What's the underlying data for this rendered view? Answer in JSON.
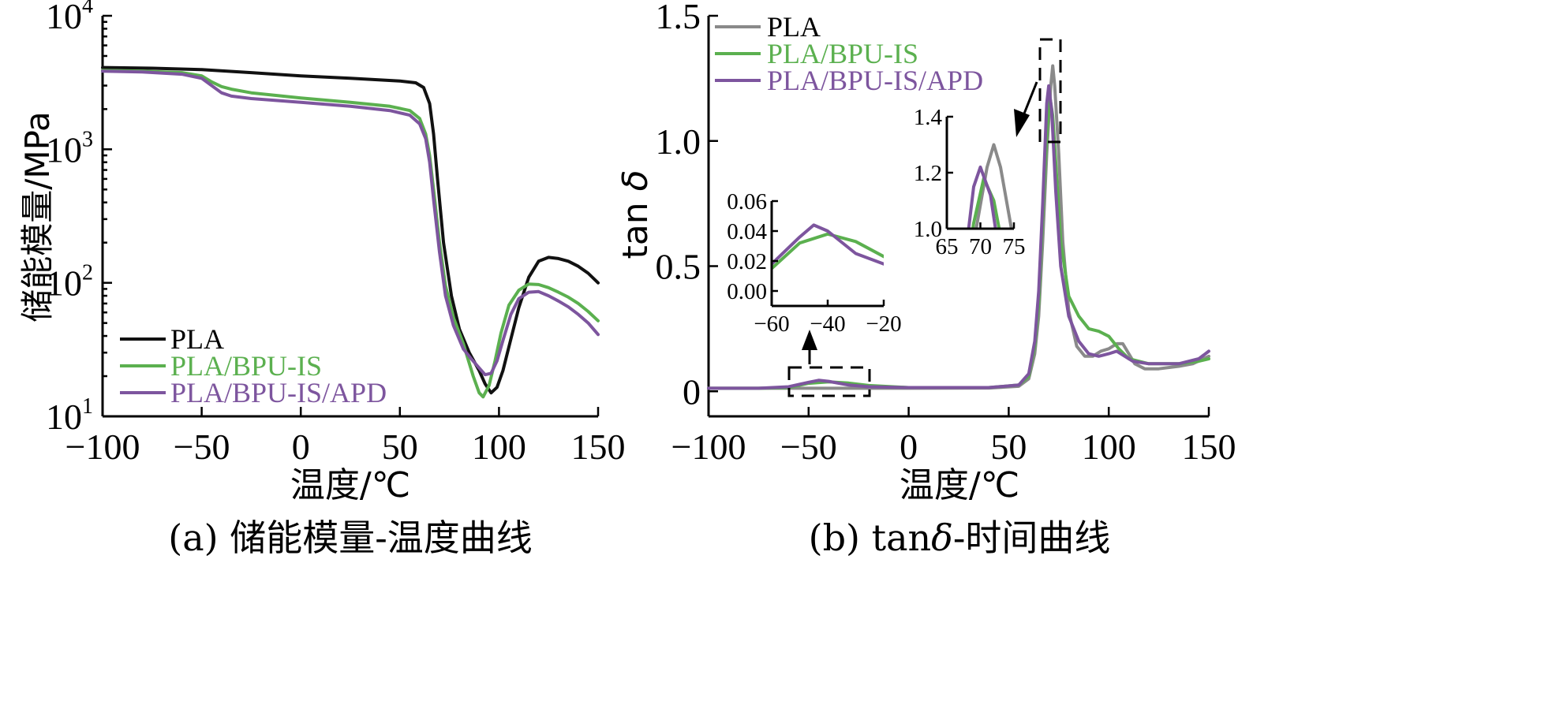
{
  "chart_data": [
    {
      "type": "line",
      "caption": "(a) 储能模量-温度曲线",
      "xlabel": "温度/℃",
      "ylabel": "储能模量/MPa",
      "xlim": [
        -100,
        150
      ],
      "ylim": [
        10,
        10000
      ],
      "yscale": "log",
      "xticks": [
        -100,
        -50,
        0,
        50,
        100,
        150
      ],
      "xtick_labels": [
        "−100",
        "−50",
        "0",
        "50",
        "100",
        "150"
      ],
      "yticks": [
        {
          "value": 10,
          "base": "10",
          "exp": "1"
        },
        {
          "value": 100,
          "base": "10",
          "exp": "2"
        },
        {
          "value": 1000,
          "base": "10",
          "exp": "3"
        },
        {
          "value": 10000,
          "base": "10",
          "exp": "4"
        }
      ],
      "legend_position": "lower-left",
      "series": [
        {
          "name": "PLA",
          "color": "#111111",
          "points": [
            [
              -100,
              4100
            ],
            [
              -75,
              4050
            ],
            [
              -50,
              3950
            ],
            [
              -25,
              3750
            ],
            [
              0,
              3550
            ],
            [
              25,
              3400
            ],
            [
              50,
              3250
            ],
            [
              58,
              3150
            ],
            [
              62,
              2900
            ],
            [
              65,
              2200
            ],
            [
              67,
              1300
            ],
            [
              69,
              600
            ],
            [
              72,
              200
            ],
            [
              76,
              80
            ],
            [
              80,
              45
            ],
            [
              85,
              30
            ],
            [
              90,
              22
            ],
            [
              93,
              17.5
            ],
            [
              96,
              15
            ],
            [
              99,
              16.5
            ],
            [
              102,
              22
            ],
            [
              106,
              38
            ],
            [
              110,
              65
            ],
            [
              115,
              110
            ],
            [
              120,
              145
            ],
            [
              125,
              155
            ],
            [
              130,
              152
            ],
            [
              135,
              145
            ],
            [
              140,
              133
            ],
            [
              145,
              118
            ],
            [
              150,
              100
            ]
          ]
        },
        {
          "name": "PLA/BPU-IS",
          "color": "#5bb04f",
          "points": [
            [
              -100,
              3900
            ],
            [
              -80,
              3850
            ],
            [
              -60,
              3750
            ],
            [
              -50,
              3550
            ],
            [
              -45,
              3200
            ],
            [
              -40,
              2950
            ],
            [
              -35,
              2820
            ],
            [
              -25,
              2650
            ],
            [
              0,
              2420
            ],
            [
              25,
              2250
            ],
            [
              45,
              2100
            ],
            [
              55,
              1950
            ],
            [
              60,
              1700
            ],
            [
              63,
              1300
            ],
            [
              65,
              900
            ],
            [
              67,
              500
            ],
            [
              70,
              200
            ],
            [
              73,
              95
            ],
            [
              77,
              55
            ],
            [
              82,
              35
            ],
            [
              87,
              20
            ],
            [
              90,
              15
            ],
            [
              92,
              14
            ],
            [
              95,
              17
            ],
            [
              98,
              26
            ],
            [
              101,
              42
            ],
            [
              105,
              68
            ],
            [
              110,
              88
            ],
            [
              115,
              98
            ],
            [
              120,
              97
            ],
            [
              125,
              92
            ],
            [
              130,
              85
            ],
            [
              135,
              78
            ],
            [
              140,
              70
            ],
            [
              145,
              61
            ],
            [
              150,
              52
            ]
          ]
        },
        {
          "name": "PLA/BPU-IS/APD",
          "color": "#7d559e",
          "points": [
            [
              -100,
              3850
            ],
            [
              -80,
              3800
            ],
            [
              -60,
              3650
            ],
            [
              -50,
              3400
            ],
            [
              -45,
              3000
            ],
            [
              -40,
              2650
            ],
            [
              -35,
              2500
            ],
            [
              -25,
              2400
            ],
            [
              0,
              2250
            ],
            [
              25,
              2100
            ],
            [
              45,
              1950
            ],
            [
              55,
              1800
            ],
            [
              60,
              1550
            ],
            [
              63,
              1200
            ],
            [
              65,
              800
            ],
            [
              67,
              420
            ],
            [
              70,
              170
            ],
            [
              73,
              80
            ],
            [
              77,
              48
            ],
            [
              82,
              32
            ],
            [
              86,
              27
            ],
            [
              90,
              23
            ],
            [
              93,
              20.5
            ],
            [
              96,
              21
            ],
            [
              99,
              26
            ],
            [
              102,
              37
            ],
            [
              106,
              58
            ],
            [
              110,
              76
            ],
            [
              115,
              85
            ],
            [
              120,
              86
            ],
            [
              125,
              80
            ],
            [
              130,
              73
            ],
            [
              135,
              66
            ],
            [
              140,
              58
            ],
            [
              145,
              50
            ],
            [
              150,
              41
            ]
          ]
        }
      ]
    },
    {
      "type": "line",
      "caption_prefix": "(b) tan",
      "caption_symbol": "δ",
      "caption_suffix": "-时间曲线",
      "xlabel": "温度/℃",
      "ylabel_prefix": "tan ",
      "ylabel_symbol": "δ",
      "xlim": [
        -100,
        150
      ],
      "ylim": [
        -0.1,
        1.5
      ],
      "xticks": [
        -100,
        -50,
        0,
        50,
        100,
        150
      ],
      "xtick_labels": [
        "−100",
        "−50",
        "0",
        "50",
        "100",
        "150"
      ],
      "yticks": [
        0,
        0.5,
        1.0,
        1.5
      ],
      "ytick_labels": [
        "0",
        "0.5",
        "1.0",
        "1.5"
      ],
      "legend_position": "top-left",
      "series": [
        {
          "name": "PLA",
          "color": "#8a8a8a",
          "points": [
            [
              -100,
              0.012
            ],
            [
              -50,
              0.012
            ],
            [
              0,
              0.012
            ],
            [
              40,
              0.013
            ],
            [
              55,
              0.02
            ],
            [
              60,
              0.05
            ],
            [
              63,
              0.15
            ],
            [
              65,
              0.3
            ],
            [
              67,
              0.6
            ],
            [
              69,
              0.95
            ],
            [
              71,
              1.22
            ],
            [
              72,
              1.3
            ],
            [
              73,
              1.22
            ],
            [
              75,
              0.95
            ],
            [
              77,
              0.6
            ],
            [
              80,
              0.32
            ],
            [
              84,
              0.18
            ],
            [
              88,
              0.14
            ],
            [
              92,
              0.14
            ],
            [
              96,
              0.16
            ],
            [
              100,
              0.17
            ],
            [
              104,
              0.19
            ],
            [
              107,
              0.19
            ],
            [
              110,
              0.15
            ],
            [
              113,
              0.11
            ],
            [
              118,
              0.09
            ],
            [
              125,
              0.09
            ],
            [
              135,
              0.1
            ],
            [
              142,
              0.11
            ],
            [
              150,
              0.14
            ]
          ]
        },
        {
          "name": "PLA/BPU-IS",
          "color": "#5bb04f",
          "points": [
            [
              -100,
              0.012
            ],
            [
              -75,
              0.012
            ],
            [
              -60,
              0.015
            ],
            [
              -50,
              0.032
            ],
            [
              -40,
              0.038
            ],
            [
              -30,
              0.033
            ],
            [
              -20,
              0.023
            ],
            [
              0,
              0.015
            ],
            [
              40,
              0.015
            ],
            [
              55,
              0.025
            ],
            [
              60,
              0.06
            ],
            [
              63,
              0.18
            ],
            [
              65,
              0.35
            ],
            [
              67,
              0.7
            ],
            [
              69,
              1.02
            ],
            [
              70.5,
              1.18
            ],
            [
              72,
              1.1
            ],
            [
              74,
              0.85
            ],
            [
              76,
              0.6
            ],
            [
              80,
              0.38
            ],
            [
              85,
              0.3
            ],
            [
              90,
              0.25
            ],
            [
              95,
              0.24
            ],
            [
              100,
              0.22
            ],
            [
              105,
              0.17
            ],
            [
              110,
              0.13
            ],
            [
              120,
              0.11
            ],
            [
              135,
              0.11
            ],
            [
              145,
              0.12
            ],
            [
              150,
              0.13
            ]
          ]
        },
        {
          "name": "PLA/BPU-IS/APD",
          "color": "#7d559e",
          "points": [
            [
              -100,
              0.012
            ],
            [
              -75,
              0.012
            ],
            [
              -60,
              0.018
            ],
            [
              -50,
              0.036
            ],
            [
              -45,
              0.044
            ],
            [
              -40,
              0.04
            ],
            [
              -30,
              0.025
            ],
            [
              -20,
              0.018
            ],
            [
              0,
              0.015
            ],
            [
              40,
              0.015
            ],
            [
              55,
              0.025
            ],
            [
              60,
              0.07
            ],
            [
              63,
              0.2
            ],
            [
              65,
              0.4
            ],
            [
              67,
              0.75
            ],
            [
              69,
              1.15
            ],
            [
              70,
              1.22
            ],
            [
              71.5,
              1.12
            ],
            [
              73.5,
              0.8
            ],
            [
              76,
              0.5
            ],
            [
              80,
              0.3
            ],
            [
              85,
              0.2
            ],
            [
              90,
              0.15
            ],
            [
              95,
              0.14
            ],
            [
              100,
              0.15
            ],
            [
              104,
              0.16
            ],
            [
              108,
              0.14
            ],
            [
              112,
              0.12
            ],
            [
              120,
              0.11
            ],
            [
              135,
              0.11
            ],
            [
              145,
              0.13
            ],
            [
              150,
              0.16
            ]
          ]
        }
      ],
      "insets": [
        {
          "xlim": [
            -60,
            -20
          ],
          "ylim": [
            -0.01,
            0.06
          ],
          "xticks": [
            -60,
            -40,
            -20
          ],
          "xtick_labels": [
            "−60",
            "−40",
            "−20"
          ],
          "yticks": [
            0,
            0.02,
            0.04,
            0.06
          ],
          "ytick_labels": [
            "0.00",
            "0.02",
            "0.04",
            "0.06"
          ]
        },
        {
          "xlim": [
            65,
            75
          ],
          "ylim": [
            1.0,
            1.4
          ],
          "xticks": [
            65,
            70,
            75
          ],
          "xtick_labels": [
            "65",
            "70",
            "75"
          ],
          "yticks": [
            1.0,
            1.2,
            1.4
          ],
          "ytick_labels": [
            "1.0",
            "1.2",
            "1.4"
          ]
        }
      ]
    }
  ]
}
